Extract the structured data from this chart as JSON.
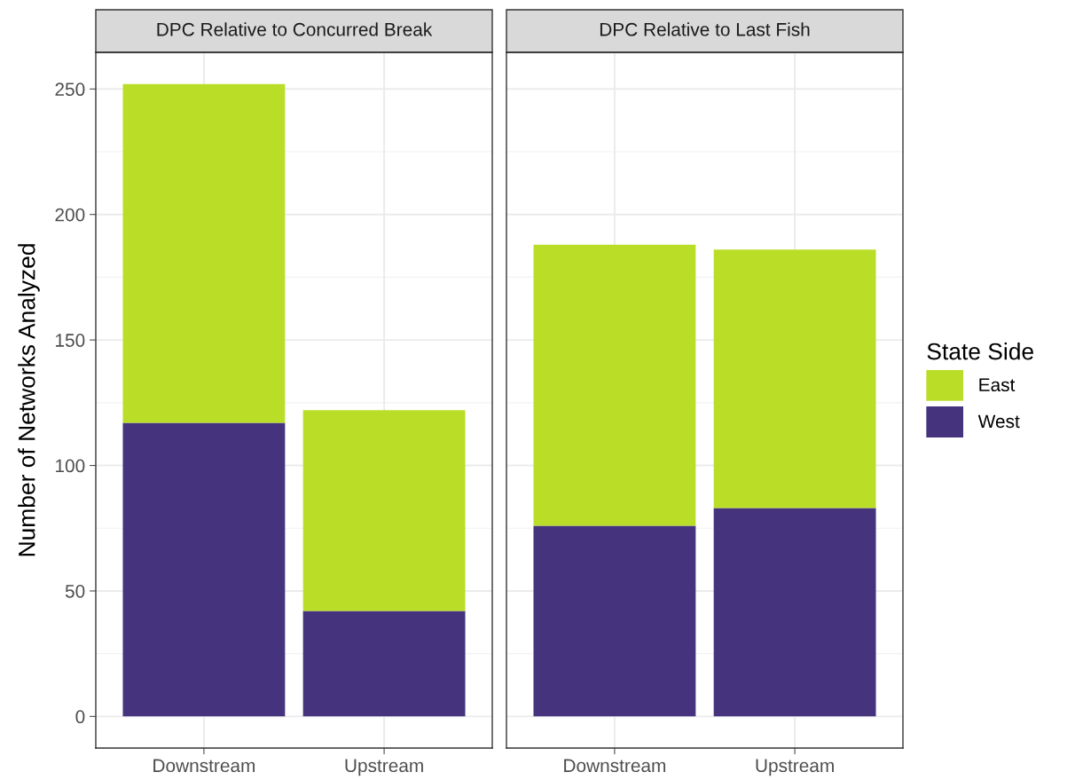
{
  "chart_data": [
    {
      "type": "bar",
      "title": "DPC Relative to Concurred Break",
      "ylabel": "Number of Networks Analyzed",
      "categories": [
        "Downstream",
        "Upstream"
      ],
      "stacked": true,
      "series": [
        {
          "name": "West",
          "color": "#45337d",
          "values": [
            117,
            42
          ]
        },
        {
          "name": "East",
          "color": "#bade28",
          "values": [
            135,
            80
          ]
        }
      ],
      "ylim": [
        -12.6,
        264.6
      ],
      "yticks": [
        0,
        50,
        100,
        150,
        200,
        250
      ],
      "grid": true,
      "legend": "right",
      "legend_title": "State Side"
    },
    {
      "type": "bar",
      "title": "DPC Relative to Last Fish",
      "categories": [
        "Downstream",
        "Upstream"
      ],
      "stacked": true,
      "series": [
        {
          "color": "#45337d",
          "values": [
            76,
            83
          ]
        },
        {
          "color": "#bade28",
          "values": [
            112,
            103
          ]
        }
      ],
      "ylim": [
        -12.6,
        264.6
      ],
      "yticks": [
        0,
        50,
        100,
        150,
        200,
        250
      ],
      "grid": true,
      "tick_labels": "x"
    }
  ]
}
